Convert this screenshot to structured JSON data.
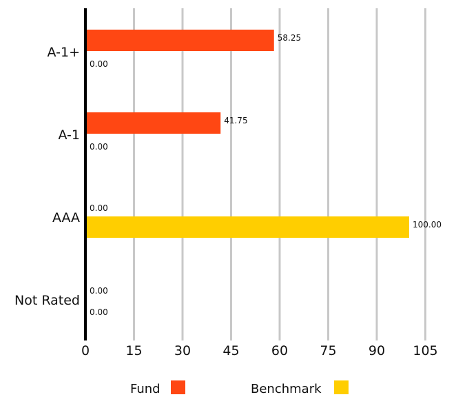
{
  "chart_data": {
    "type": "bar",
    "orientation": "horizontal",
    "categories": [
      "A-1+",
      "A-1",
      "AAA",
      "Not Rated"
    ],
    "series": [
      {
        "name": "Fund",
        "color": "#ff4713",
        "values": [
          58.25,
          41.75,
          0,
          0
        ],
        "labels": [
          "58.25",
          "41.75",
          "0.00",
          "0.00"
        ]
      },
      {
        "name": "Benchmark",
        "color": "#ffce00",
        "values": [
          0,
          0,
          100,
          0
        ],
        "labels": [
          "0.00",
          "0.00",
          "100.00",
          "0.00"
        ]
      }
    ],
    "xlim": [
      0,
      105
    ],
    "xticks": [
      "0",
      "15",
      "30",
      "45",
      "60",
      "75",
      "90",
      "105"
    ],
    "grid": true,
    "legend_position": "bottom"
  }
}
